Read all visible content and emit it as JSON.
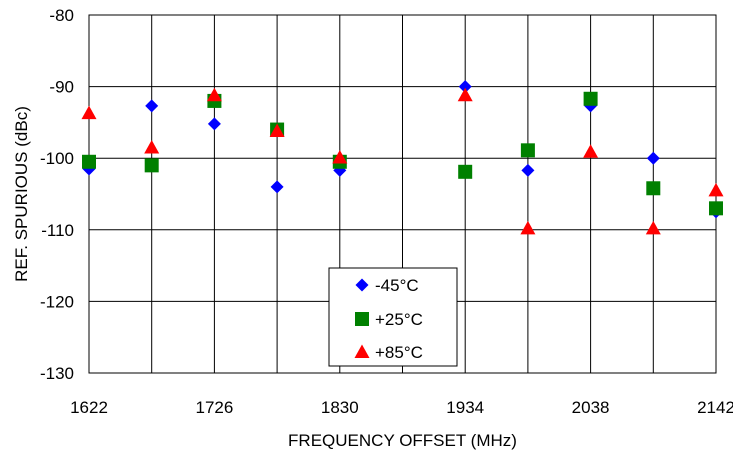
{
  "chart_data": {
    "type": "scatter",
    "title": "",
    "xlabel": "FREQUENCY OFFSET (MHz)",
    "ylabel": "REF. SPURIOUS (dBc)",
    "xlim": [
      1622,
      2142
    ],
    "ylim": [
      -130,
      -80
    ],
    "x_ticks": [
      1622,
      1726,
      1830,
      1934,
      2038,
      2142
    ],
    "x_tick_labels": [
      "1622",
      "1726",
      "1830",
      "1934",
      "2038",
      "2142"
    ],
    "y_ticks": [
      -130,
      -120,
      -110,
      -100,
      -90,
      -80
    ],
    "y_tick_labels": [
      "-130",
      "-120",
      "-110",
      "-100",
      "-90",
      "-80"
    ],
    "grid": true,
    "legend_position": "bottom-center",
    "series": [
      {
        "name": "-45°C",
        "marker": "diamond",
        "color": "#0000ff",
        "x": [
          1622,
          1674,
          1726,
          1778,
          1830,
          1934,
          1986,
          2038,
          2090,
          2142
        ],
        "y": [
          -101.5,
          -92.7,
          -95.2,
          -104,
          -101.7,
          -90,
          -101.7,
          -92.7,
          -100,
          -107.5
        ]
      },
      {
        "name": "+25°C",
        "marker": "square",
        "color": "#008000",
        "x": [
          1622,
          1674,
          1726,
          1778,
          1830,
          1934,
          1986,
          2038,
          2090,
          2142
        ],
        "y": [
          -100.5,
          -101,
          -92,
          -96,
          -100.5,
          -101.9,
          -98.9,
          -91.7,
          -104.2,
          -107
        ]
      },
      {
        "name": "+85°C",
        "marker": "triangle",
        "color": "#ff0000",
        "x": [
          1622,
          1674,
          1726,
          1778,
          1830,
          1934,
          1986,
          2038,
          2090,
          2142
        ],
        "y": [
          -93.7,
          -98.5,
          -91.2,
          -96.2,
          -99.9,
          -91.2,
          -109.8,
          -99.1,
          -109.8,
          -104.5
        ]
      }
    ]
  }
}
